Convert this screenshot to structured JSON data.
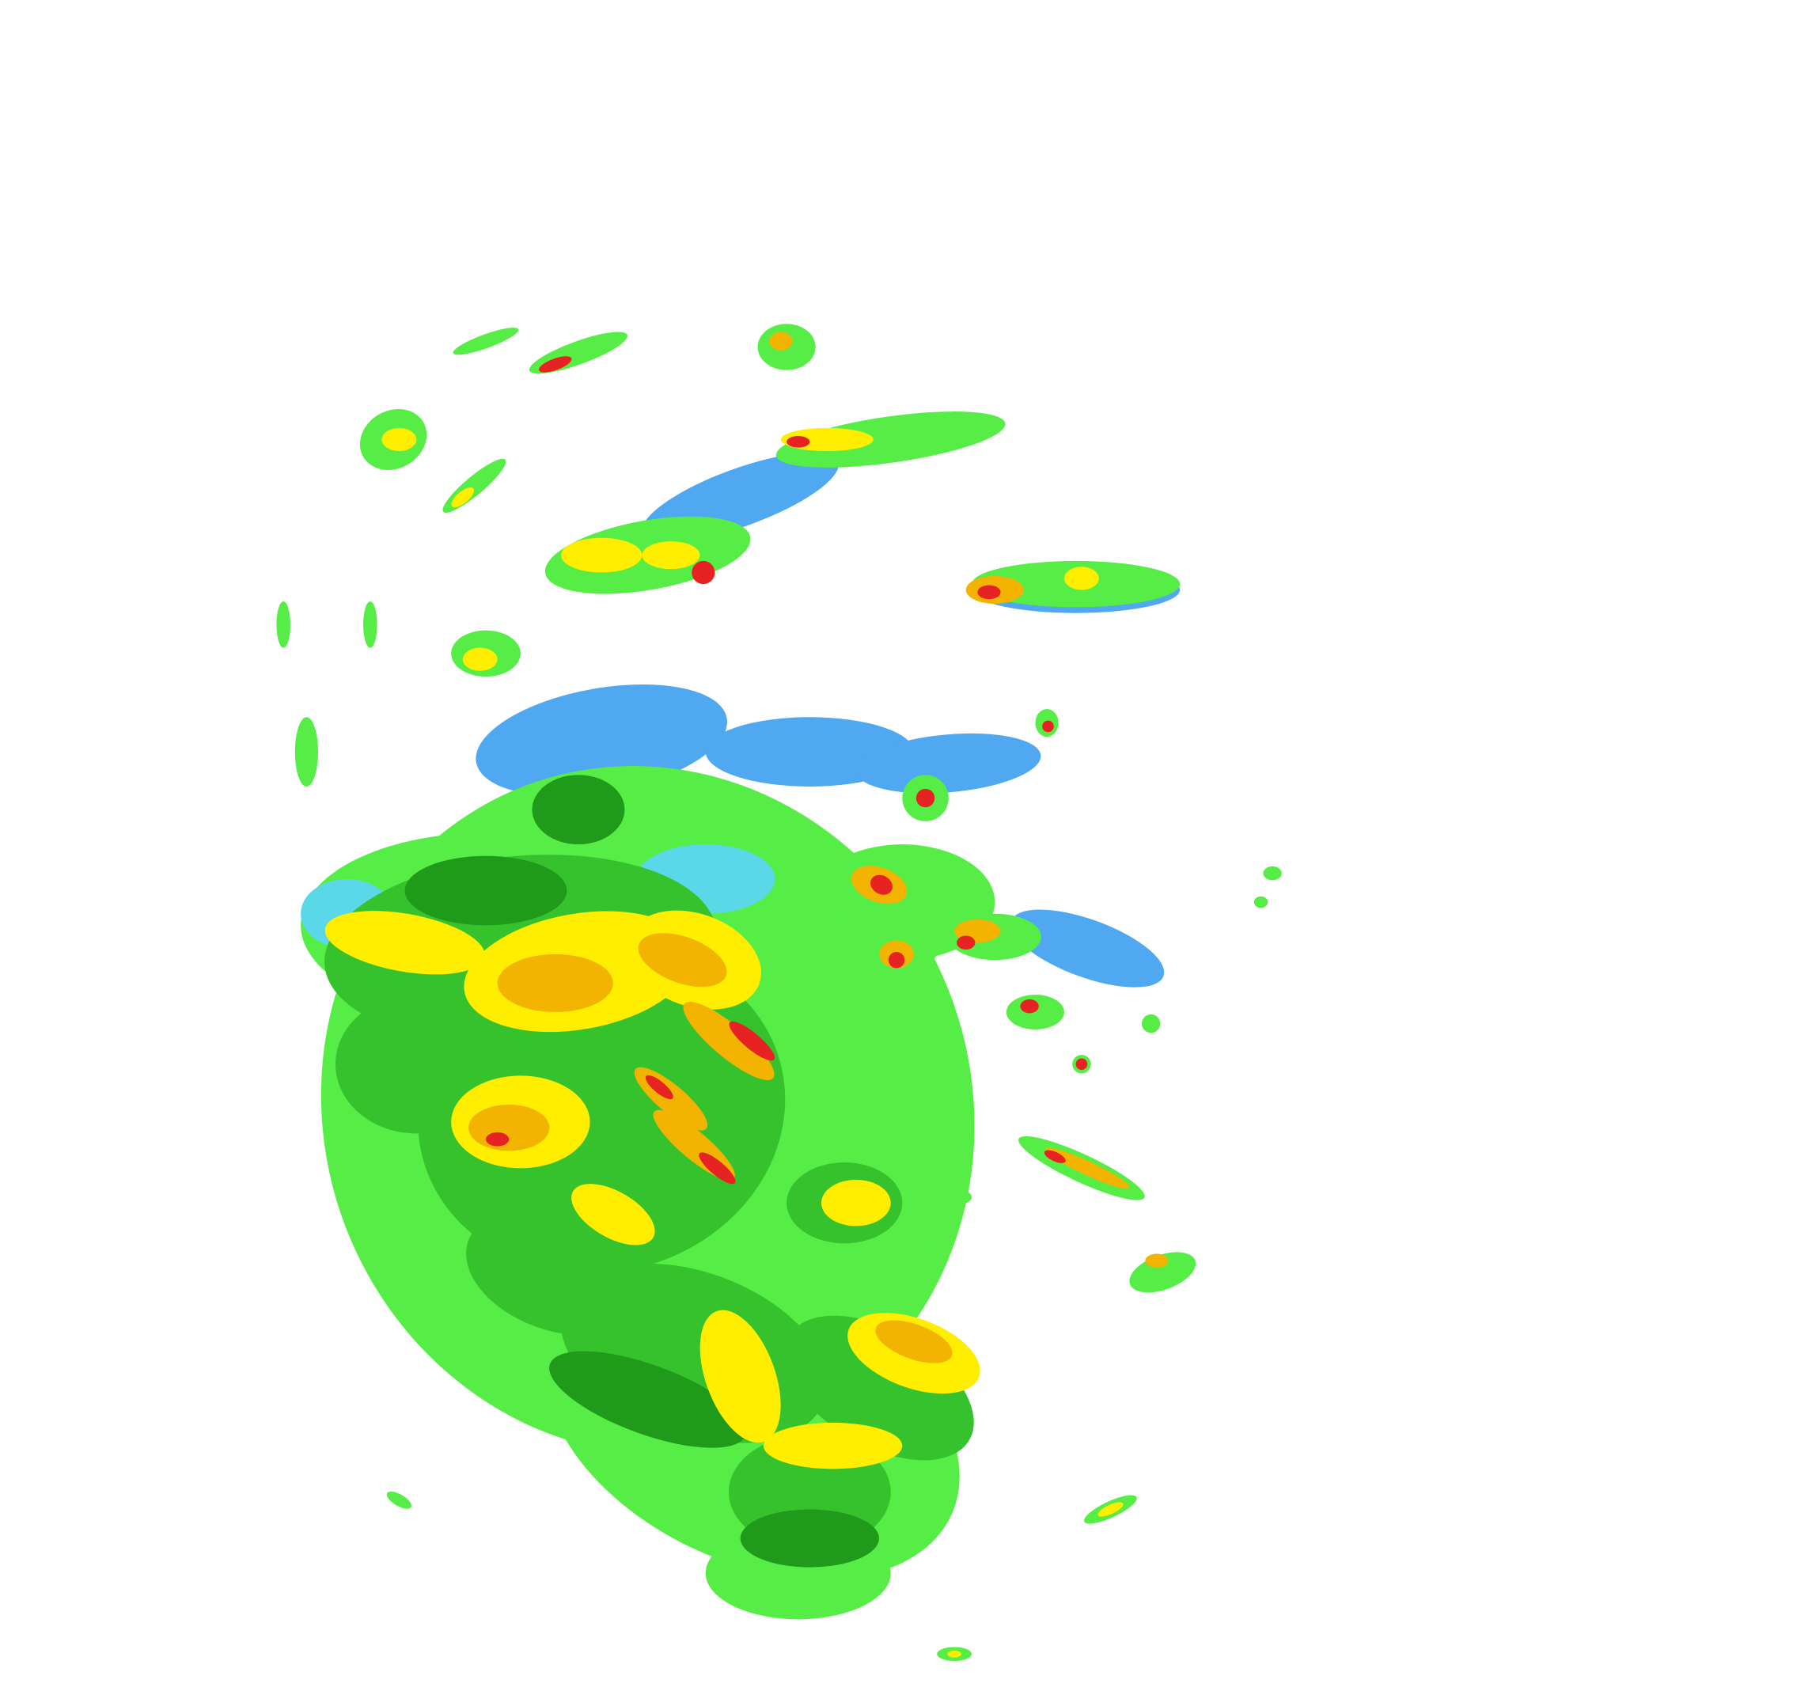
{
  "map": {
    "type": "radar-reflectivity",
    "background": "#ffffff",
    "palette": {
      "light_blue": "#4fa8f0",
      "cyan": "#5ad8e8",
      "light_green": "#56ee46",
      "green": "#36c22c",
      "dark_green": "#1f9a1a",
      "yellow": "#ffee00",
      "orange": "#f2b400",
      "red": "#e62222"
    }
  }
}
